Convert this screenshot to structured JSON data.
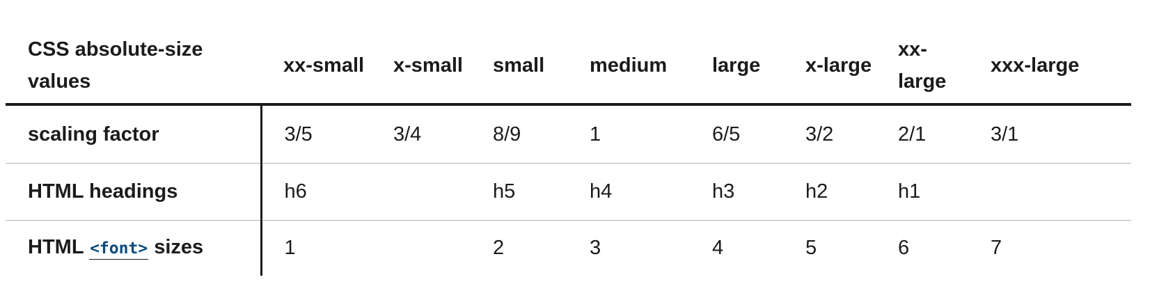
{
  "table": {
    "corner_header": "CSS absolute-size values",
    "columns": [
      "xx-small",
      "x-small",
      "small",
      "medium",
      "large",
      "x-large",
      "xx-large",
      "xxx-large"
    ],
    "rows": [
      {
        "label": "scaling factor",
        "cells": [
          "3/5",
          "3/4",
          "8/9",
          "1",
          "6/5",
          "3/2",
          "2/1",
          "3/1"
        ]
      },
      {
        "label": "HTML headings",
        "cells": [
          "h6",
          "",
          "h5",
          "h4",
          "h3",
          "h2",
          "h1",
          ""
        ]
      },
      {
        "label_prefix": "HTML ",
        "label_code": "<font>",
        "label_suffix": " sizes",
        "cells": [
          "1",
          "",
          "2",
          "3",
          "4",
          "5",
          "6",
          "7"
        ]
      }
    ]
  }
}
